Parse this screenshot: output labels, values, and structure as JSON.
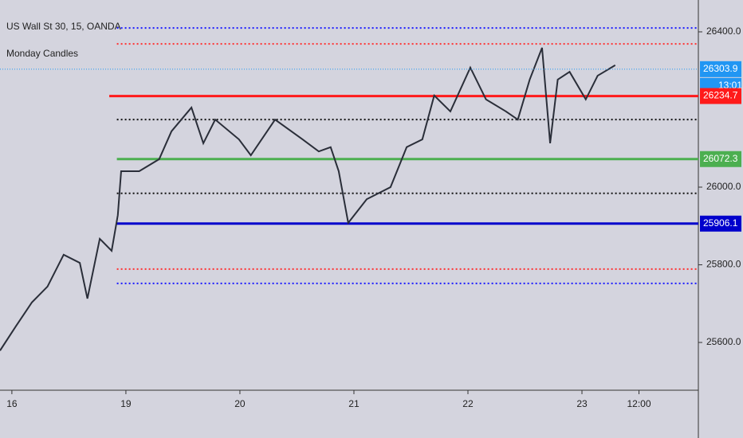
{
  "chart_data": {
    "type": "line",
    "title": "US Wall St 30, 15, OANDA",
    "subtitle": "Monday Candles",
    "x": [
      -2.5,
      0.8,
      4.2,
      7.5,
      10.9,
      14.3,
      15.9,
      18.5,
      21,
      22.3,
      23,
      26.8,
      31,
      33.6,
      37.8,
      40.3,
      42.8,
      47.8,
      50.3,
      55.4,
      61.2,
      64.6,
      67.1,
      68.8,
      70.8,
      74.7,
      79.7,
      83.1,
      86.4,
      88.9,
      92.3,
      96.5,
      99.8,
      104,
      106.5,
      109,
      111.6,
      113.3,
      114.9,
      117.4,
      120.8,
      123.3,
      127
    ],
    "series": [
      {
        "name": "US Wall St 30",
        "color": "#2a2e39",
        "values": [
          25579,
          25641,
          25703,
          25744,
          25826,
          25805,
          25713,
          25867,
          25836,
          25928,
          26041,
          26041,
          26072,
          26144,
          26205,
          26113,
          26174,
          26123,
          26082,
          26174,
          26123,
          26092,
          26103,
          26041,
          25908,
          25969,
          26000,
          26103,
          26123,
          26236,
          26195,
          26308,
          26226,
          26195,
          26174,
          26277,
          26359,
          26113,
          26277,
          26297,
          26226,
          26287,
          26314
        ]
      }
    ],
    "xlim": [
      -2.5,
      144.5
    ],
    "xticks": [
      {
        "value": 0,
        "label": "16"
      },
      {
        "value": 24,
        "label": "19"
      },
      {
        "value": 48,
        "label": "20"
      },
      {
        "value": 72,
        "label": "21"
      },
      {
        "value": 96,
        "label": "22"
      },
      {
        "value": 120,
        "label": "23"
      },
      {
        "value": 132,
        "label": "12:00"
      }
    ],
    "ylim": [
      25477,
      26482
    ],
    "yticks": [
      {
        "value": 26400,
        "label": "26400.0"
      },
      {
        "value": 26000,
        "label": "26000.0"
      },
      {
        "value": 25800,
        "label": "25800.0"
      },
      {
        "value": 25600,
        "label": "25600.0"
      }
    ],
    "levels": [
      {
        "value": 26410,
        "color": "#1a1aff",
        "style": "dotted",
        "start": 22.1
      },
      {
        "value": 26369,
        "color": "#ff3030",
        "style": "dotted",
        "start": 22.1
      },
      {
        "value": 26234.7,
        "color": "#ff1a1a",
        "style": "solid",
        "start": 20.5
      },
      {
        "value": 26174,
        "color": "#111111",
        "style": "dotted",
        "start": 22.1
      },
      {
        "value": 26072.3,
        "color": "#4caf50",
        "style": "solid",
        "start": 22.1
      },
      {
        "value": 25984,
        "color": "#111111",
        "style": "dotted",
        "start": 22.1
      },
      {
        "value": 25906.1,
        "color": "#0000cc",
        "style": "solid",
        "start": 22.1
      },
      {
        "value": 25789,
        "color": "#ff3030",
        "style": "dotted",
        "start": 22.1
      },
      {
        "value": 25752,
        "color": "#1a1aff",
        "style": "dotted",
        "start": 22.1
      }
    ],
    "price_labels": [
      {
        "value": 26303.9,
        "color": "#2196f3"
      },
      {
        "value": 26234.7,
        "color": "#ff1a1a"
      },
      {
        "value": 26072.3,
        "color": "#4caf50"
      },
      {
        "value": 25906.1,
        "color": "#0000cc"
      }
    ],
    "countdown": "13:01"
  }
}
